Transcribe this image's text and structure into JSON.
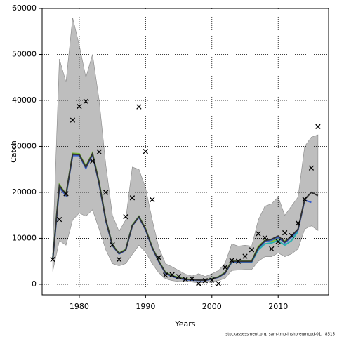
{
  "chart_data": {
    "type": "line",
    "xlabel": "Years",
    "ylabel": "Catch",
    "footer": "stockassessment.org, sam-tmb-inshoregmcod-01, r8515",
    "x": [
      1976,
      1977,
      1978,
      1979,
      1980,
      1981,
      1982,
      1983,
      1984,
      1985,
      1986,
      1987,
      1988,
      1989,
      1990,
      1991,
      1992,
      1993,
      1994,
      1995,
      1996,
      1997,
      1998,
      1999,
      2000,
      2001,
      2002,
      2003,
      2004,
      2005,
      2006,
      2007,
      2008,
      2009,
      2010,
      2011,
      2012,
      2013,
      2014,
      2015,
      2016
    ],
    "band": {
      "color": "#bebebe",
      "upper": [
        8000,
        49000,
        44000,
        58000,
        52000,
        45000,
        50000,
        40000,
        26000,
        15000,
        11500,
        14000,
        25500,
        25000,
        21000,
        14000,
        8000,
        4500,
        3800,
        3000,
        2200,
        1800,
        2300,
        1700,
        2300,
        3000,
        4600,
        8800,
        8300,
        8500,
        8300,
        14000,
        17000,
        17500,
        19000,
        15000,
        17000,
        19000,
        30000,
        32000,
        32500
      ],
      "lower": [
        2800,
        9500,
        8500,
        14000,
        15500,
        14800,
        16200,
        12000,
        7500,
        4500,
        4000,
        4500,
        6500,
        8500,
        7000,
        4500,
        2500,
        1200,
        800,
        600,
        500,
        500,
        300,
        400,
        600,
        800,
        1300,
        3000,
        3100,
        3200,
        3200,
        5000,
        6000,
        6000,
        6800,
        6000,
        6600,
        7700,
        12000,
        12700,
        11700
      ]
    },
    "series": [
      {
        "color": "#7fbf3f",
        "values": [
          5600,
          21700,
          19600,
          28500,
          28400,
          25700,
          28600,
          22200,
          14100,
          8600,
          6800,
          7600,
          12900,
          14800,
          12100,
          8100,
          5100,
          2600,
          1900,
          1500,
          1150,
          1050,
          950,
          950,
          1250,
          1650,
          2600,
          5100,
          5100,
          5100,
          5100,
          8200,
          9600,
          9300,
          9900,
          9400,
          10300,
          null,
          null,
          null,
          null
        ]
      },
      {
        "color": "#2ab0b0",
        "values": [
          5500,
          21300,
          19400,
          28100,
          28100,
          25300,
          28300,
          21900,
          13900,
          8500,
          6700,
          7500,
          12800,
          14700,
          11900,
          8000,
          5000,
          2500,
          1800,
          1400,
          1100,
          1000,
          900,
          900,
          1200,
          1600,
          2500,
          4800,
          4800,
          4800,
          4800,
          7500,
          8800,
          9000,
          9500,
          8500,
          9500,
          11500,
          null,
          null,
          null
        ]
      },
      {
        "color": "#3a5fcd",
        "values": [
          5400,
          21000,
          19300,
          28000,
          28000,
          25200,
          28200,
          21800,
          13800,
          8400,
          6600,
          7400,
          12700,
          14600,
          11800,
          7900,
          4900,
          2400,
          1700,
          1300,
          1000,
          900,
          850,
          850,
          1150,
          1550,
          2400,
          4900,
          4900,
          4900,
          4900,
          7800,
          9300,
          9600,
          10200,
          9000,
          10200,
          11800,
          18300,
          17800,
          null
        ]
      },
      {
        "color": "#333333",
        "values": [
          5500,
          21500,
          19500,
          28300,
          28200,
          25500,
          28400,
          22000,
          14000,
          8500,
          6700,
          7500,
          12800,
          14700,
          12000,
          8000,
          5000,
          2500,
          1800,
          1400,
          1100,
          1000,
          900,
          900,
          1200,
          1600,
          2500,
          5000,
          5000,
          5000,
          5000,
          8000,
          9500,
          9800,
          10500,
          9200,
          10500,
          12000,
          18500,
          20000,
          19300
        ]
      }
    ],
    "observed": {
      "marker": "x",
      "color": "#000000",
      "values": [
        5400,
        14100,
        19700,
        35700,
        38700,
        39800,
        26800,
        28800,
        20000,
        8600,
        5400,
        14700,
        18800,
        38600,
        28900,
        18400,
        5800,
        2000,
        2100,
        1700,
        1100,
        1200,
        150,
        800,
        900,
        150,
        3700,
        5200,
        5000,
        6100,
        7500,
        11000,
        10100,
        7700,
        9300,
        11200,
        10600,
        13300,
        18500,
        25300,
        34300
      ]
    },
    "xlim": [
      1974.4,
      2017.6
    ],
    "xticks": [
      1980,
      1990,
      2000,
      2010
    ],
    "ylim": [
      -2300,
      60000
    ],
    "yticks": [
      0,
      10000,
      20000,
      30000,
      40000,
      50000,
      60000
    ],
    "grid": true
  }
}
